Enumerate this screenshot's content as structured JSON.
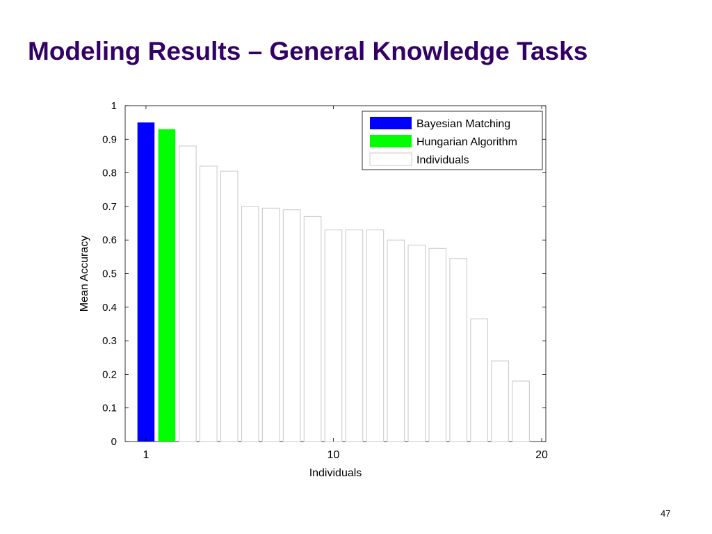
{
  "slide": {
    "title": "Modeling Results – General Knowledge Tasks",
    "page_number": "47",
    "title_color": "#330066"
  },
  "chart_data": {
    "type": "bar",
    "xlabel": "Individuals",
    "ylabel": "Mean Accuracy",
    "x": [
      1,
      2,
      3,
      4,
      5,
      6,
      7,
      8,
      9,
      10,
      11,
      12,
      13,
      14,
      15,
      16,
      17,
      18,
      19
    ],
    "values": [
      0.95,
      0.93,
      0.88,
      0.82,
      0.805,
      0.7,
      0.695,
      0.69,
      0.67,
      0.63,
      0.63,
      0.63,
      0.6,
      0.585,
      0.575,
      0.545,
      0.365,
      0.24,
      0.18
    ],
    "bar_kinds": [
      "Bayesian Matching",
      "Hungarian Algorithm",
      "Individuals",
      "Individuals",
      "Individuals",
      "Individuals",
      "Individuals",
      "Individuals",
      "Individuals",
      "Individuals",
      "Individuals",
      "Individuals",
      "Individuals",
      "Individuals",
      "Individuals",
      "Individuals",
      "Individuals",
      "Individuals",
      "Individuals"
    ],
    "xlim": [
      0,
      20.2
    ],
    "ylim": [
      0,
      1
    ],
    "xticks": [
      1,
      10,
      20
    ],
    "xtick_labels": [
      "1",
      "10",
      "20"
    ],
    "yticks": [
      0,
      0.1,
      0.2,
      0.3,
      0.4,
      0.5,
      0.6,
      0.7,
      0.8,
      0.9,
      1
    ],
    "ytick_labels": [
      "0",
      "0.1",
      "0.2",
      "0.3",
      "0.4",
      "0.5",
      "0.6",
      "0.7",
      "0.8",
      "0.9",
      "1"
    ],
    "grid": false,
    "legend_position": "top-right",
    "legend": [
      {
        "name": "Bayesian Matching",
        "color": "#0000ff"
      },
      {
        "name": "Hungarian Algorithm",
        "color": "#00ff00"
      },
      {
        "name": "Individuals",
        "color": "#ffffff"
      }
    ]
  }
}
